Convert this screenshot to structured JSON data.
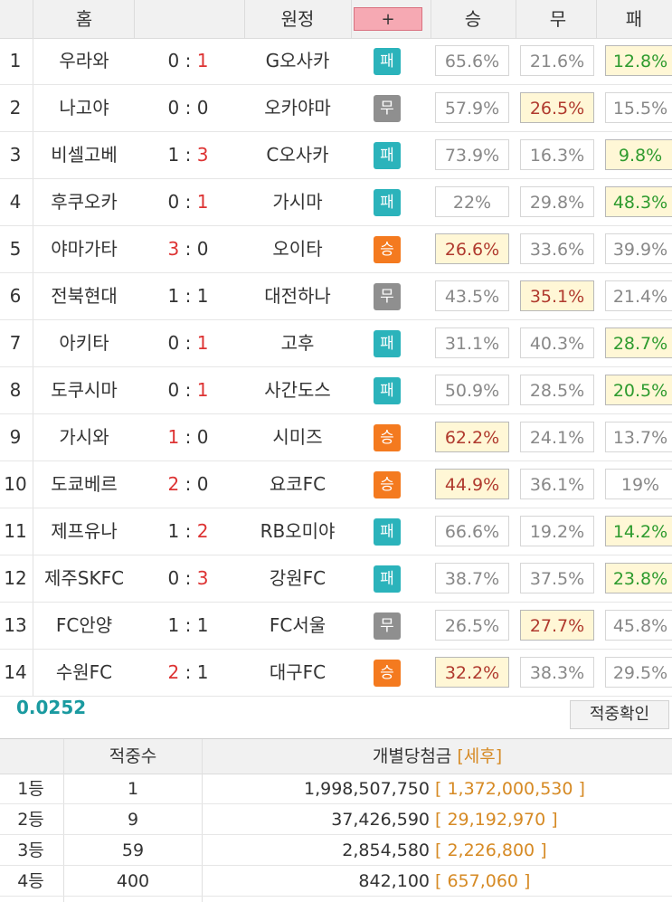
{
  "header": {
    "home_label": "홈",
    "away_label": "원정",
    "plus_label": "+",
    "win_label": "승",
    "draw_label": "무",
    "lose_label": "패"
  },
  "matches": [
    {
      "no": "1",
      "home": "우라와",
      "hs": "0",
      "as": "1",
      "away": "G오사카",
      "result": "패",
      "result_type": "lose",
      "win": "65.6%",
      "draw": "21.6%",
      "lose": "12.8%",
      "hl": "l"
    },
    {
      "no": "2",
      "home": "나고야",
      "hs": "0",
      "as": "0",
      "away": "오카야마",
      "result": "무",
      "result_type": "draw",
      "win": "57.9%",
      "draw": "26.5%",
      "lose": "15.5%",
      "hl": "d"
    },
    {
      "no": "3",
      "home": "비셀고베",
      "hs": "1",
      "as": "3",
      "away": "C오사카",
      "result": "패",
      "result_type": "lose",
      "win": "73.9%",
      "draw": "16.3%",
      "lose": "9.8%",
      "hl": "l"
    },
    {
      "no": "4",
      "home": "후쿠오카",
      "hs": "0",
      "as": "1",
      "away": "가시마",
      "result": "패",
      "result_type": "lose",
      "win": "22%",
      "draw": "29.8%",
      "lose": "48.3%",
      "hl": "l"
    },
    {
      "no": "5",
      "home": "야마가타",
      "hs": "3",
      "as": "0",
      "away": "오이타",
      "result": "승",
      "result_type": "win",
      "win": "26.6%",
      "draw": "33.6%",
      "lose": "39.9%",
      "hl": "w"
    },
    {
      "no": "6",
      "home": "전북현대",
      "hs": "1",
      "as": "1",
      "away": "대전하나",
      "result": "무",
      "result_type": "draw",
      "win": "43.5%",
      "draw": "35.1%",
      "lose": "21.4%",
      "hl": "d"
    },
    {
      "no": "7",
      "home": "아키타",
      "hs": "0",
      "as": "1",
      "away": "고후",
      "result": "패",
      "result_type": "lose",
      "win": "31.1%",
      "draw": "40.3%",
      "lose": "28.7%",
      "hl": "l"
    },
    {
      "no": "8",
      "home": "도쿠시마",
      "hs": "0",
      "as": "1",
      "away": "사간도스",
      "result": "패",
      "result_type": "lose",
      "win": "50.9%",
      "draw": "28.5%",
      "lose": "20.5%",
      "hl": "l"
    },
    {
      "no": "9",
      "home": "가시와",
      "hs": "1",
      "as": "0",
      "away": "시미즈",
      "result": "승",
      "result_type": "win",
      "win": "62.2%",
      "draw": "24.1%",
      "lose": "13.7%",
      "hl": "w"
    },
    {
      "no": "10",
      "home": "도쿄베르",
      "hs": "2",
      "as": "0",
      "away": "요코FC",
      "result": "승",
      "result_type": "win",
      "win": "44.9%",
      "draw": "36.1%",
      "lose": "19%",
      "hl": "w"
    },
    {
      "no": "11",
      "home": "제프유나",
      "hs": "1",
      "as": "2",
      "away": "RB오미야",
      "result": "패",
      "result_type": "lose",
      "win": "66.6%",
      "draw": "19.2%",
      "lose": "14.2%",
      "hl": "l"
    },
    {
      "no": "12",
      "home": "제주SKFC",
      "hs": "0",
      "as": "3",
      "away": "강원FC",
      "result": "패",
      "result_type": "lose",
      "win": "38.7%",
      "draw": "37.5%",
      "lose": "23.8%",
      "hl": "l"
    },
    {
      "no": "13",
      "home": "FC안양",
      "hs": "1",
      "as": "1",
      "away": "FC서울",
      "result": "무",
      "result_type": "draw",
      "win": "26.5%",
      "draw": "27.7%",
      "lose": "45.8%",
      "hl": "d"
    },
    {
      "no": "14",
      "home": "수원FC",
      "hs": "2",
      "as": "1",
      "away": "대구FC",
      "result": "승",
      "result_type": "win",
      "win": "32.2%",
      "draw": "38.3%",
      "lose": "29.5%",
      "hl": "w"
    }
  ],
  "ratio": "0.0252",
  "check_button": "적중확인",
  "prize": {
    "count_header": "적중수",
    "amount_header": "개별당첨금",
    "tax_header": "[세후]",
    "rows": [
      {
        "rank": "1등",
        "count": "1",
        "amount": "1,998,507,750",
        "after_tax": "[ 1,372,000,530 ]"
      },
      {
        "rank": "2등",
        "count": "9",
        "amount": "37,426,590",
        "after_tax": "[ 29,192,970 ]"
      },
      {
        "rank": "3등",
        "count": "59",
        "amount": "2,854,580",
        "after_tax": "[ 2,226,800 ]"
      },
      {
        "rank": "4등",
        "count": "400",
        "amount": "842,100",
        "after_tax": "[ 657,060 ]"
      }
    ]
  },
  "colors": {
    "win_badge": "#f47a1f",
    "draw_badge": "#8f8f8f",
    "lose_badge": "#2bb3bb",
    "highlight_bg": "#fff7d6",
    "score_red": "#dd3333",
    "ratio_teal": "#1a9aa0",
    "tax_orange": "#d68a24"
  }
}
